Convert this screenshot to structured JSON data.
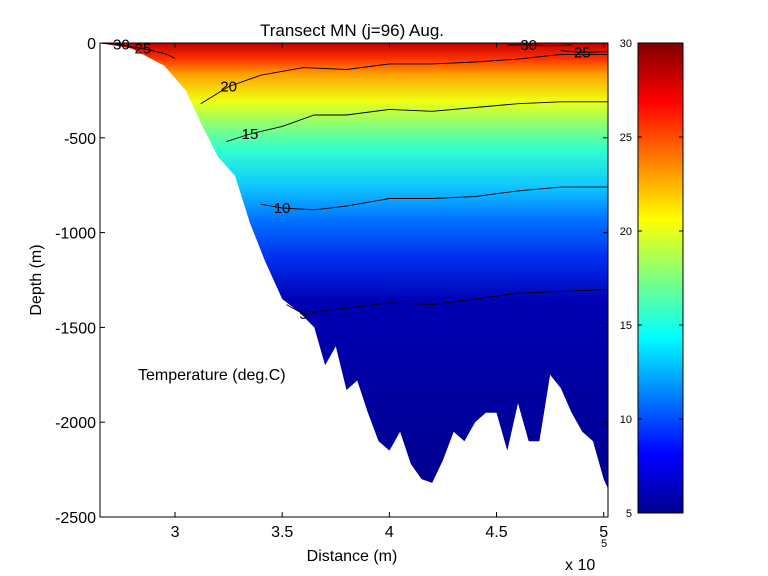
{
  "chart_data": {
    "type": "heatmap",
    "title": "Transect MN  (j=96)  Aug.",
    "xlabel": "Distance (m)",
    "ylabel": "Depth (m)",
    "x_exponent_label": "x 10",
    "x_exponent_power": "5",
    "annotation": "Temperature (deg.C)",
    "xlim": [
      2.65,
      5.02
    ],
    "ylim": [
      -2500,
      0
    ],
    "x_ticks": [
      3,
      3.5,
      4,
      4.5,
      5
    ],
    "x_tick_labels": [
      "3",
      "3.5",
      "4",
      "4.5",
      "5"
    ],
    "y_ticks": [
      0,
      -500,
      -1000,
      -1500,
      -2000,
      -2500
    ],
    "y_tick_labels": [
      "0",
      "-500",
      "-1000",
      "-1500",
      "-2000",
      "-2500"
    ],
    "colorbar": {
      "colormap": "jet",
      "clim": [
        5,
        30
      ],
      "ticks": [
        5,
        10,
        15,
        20,
        25,
        30
      ],
      "tick_labels": [
        "5",
        "10",
        "15",
        "20",
        "25",
        "30"
      ]
    },
    "seafloor": {
      "x": [
        2.65,
        2.8,
        2.95,
        3.05,
        3.12,
        3.2,
        3.28,
        3.35,
        3.42,
        3.5,
        3.58,
        3.65,
        3.7,
        3.75,
        3.8,
        3.85,
        3.9,
        3.95,
        4.0,
        4.05,
        4.1,
        4.15,
        4.2,
        4.25,
        4.3,
        4.35,
        4.4,
        4.45,
        4.5,
        4.55,
        4.6,
        4.65,
        4.7,
        4.75,
        4.8,
        4.85,
        4.9,
        4.95,
        5.0,
        5.02
      ],
      "depth": [
        0,
        -30,
        -120,
        -250,
        -420,
        -600,
        -700,
        -950,
        -1150,
        -1350,
        -1420,
        -1500,
        -1700,
        -1600,
        -1830,
        -1780,
        -1950,
        -2100,
        -2150,
        -2050,
        -2220,
        -2300,
        -2320,
        -2200,
        -2050,
        -2100,
        -2000,
        -1950,
        -1950,
        -2150,
        -1900,
        -2100,
        -2100,
        -1750,
        -1820,
        -1950,
        -2050,
        -2100,
        -2300,
        -2350
      ]
    },
    "isotherms": [
      {
        "level": 30,
        "x": [
          2.66,
          2.75,
          2.82
        ],
        "depth": [
          -2,
          -8,
          -30
        ],
        "label": "30"
      },
      {
        "level": 30,
        "x": [
          4.55,
          4.65,
          4.75,
          4.85
        ],
        "depth": [
          -10,
          -10,
          -15,
          -10
        ],
        "label": "30"
      },
      {
        "level": 25,
        "x": [
          2.72,
          2.85,
          2.95,
          3.0
        ],
        "depth": [
          -5,
          -30,
          -55,
          -80
        ],
        "label": "25"
      },
      {
        "level": 25,
        "x": [
          4.8,
          4.9,
          5.02
        ],
        "depth": [
          -40,
          -50,
          -45
        ],
        "label": "25"
      },
      {
        "level": 20,
        "x": [
          3.12,
          3.25,
          3.4,
          3.6,
          3.8,
          4.0,
          4.2,
          4.4,
          4.6,
          4.8,
          5.02
        ],
        "depth": [
          -320,
          -230,
          -170,
          -130,
          -140,
          -110,
          -110,
          -100,
          -85,
          -60,
          -60
        ],
        "label": "20"
      },
      {
        "level": 15,
        "x": [
          3.24,
          3.35,
          3.5,
          3.65,
          3.8,
          4.0,
          4.2,
          4.4,
          4.6,
          4.8,
          5.02
        ],
        "depth": [
          -520,
          -480,
          -440,
          -380,
          -380,
          -350,
          -360,
          -340,
          -320,
          -310,
          -310
        ],
        "label": "15"
      },
      {
        "level": 10,
        "x": [
          3.4,
          3.5,
          3.65,
          3.8,
          4.0,
          4.2,
          4.4,
          4.6,
          4.8,
          5.02
        ],
        "depth": [
          -850,
          -870,
          -880,
          -860,
          -820,
          -820,
          -810,
          -780,
          -760,
          -760
        ],
        "label": "10"
      },
      {
        "level": 5,
        "x": [
          3.52,
          3.6,
          3.7,
          3.8,
          4.0,
          4.2,
          4.4,
          4.6,
          4.8,
          5.02
        ],
        "depth": [
          -1380,
          -1430,
          -1410,
          -1400,
          -1370,
          -1380,
          -1350,
          -1320,
          -1310,
          -1300
        ],
        "label": "5"
      }
    ]
  }
}
